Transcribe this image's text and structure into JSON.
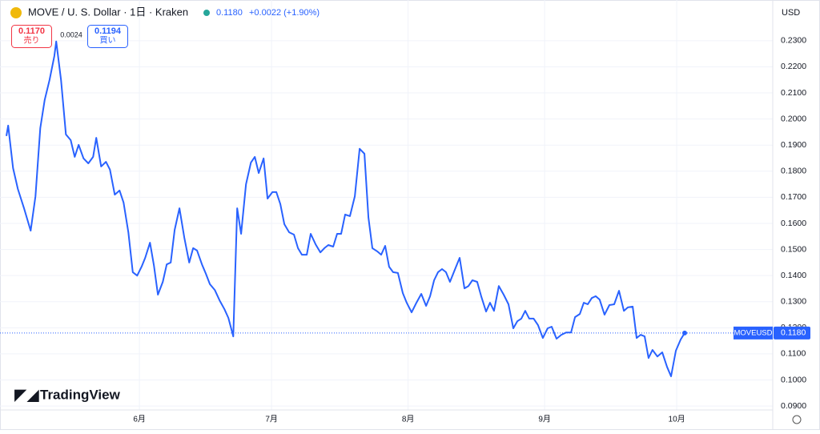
{
  "chart_data": {
    "type": "line",
    "header": {
      "symbol": "MOVE / U. S. Dollar · 1日 · Kraken",
      "last": "0.1180",
      "change": "+0.0022 (+1.90%)",
      "sell_price": "0.1170",
      "sell_label": "売り",
      "spread": "0.0024",
      "buy_price": "0.1194",
      "buy_label": "買い"
    },
    "currency": "USD",
    "price_tag": {
      "name": "MOVEUSD",
      "value": "0.1180"
    },
    "brand": "TradingView",
    "xlim": [
      -30.2,
      143.8
    ],
    "xticks": [
      {
        "value": 0,
        "label": "6月"
      },
      {
        "value": 30,
        "label": "7月"
      },
      {
        "value": 61,
        "label": "8月"
      },
      {
        "value": 92,
        "label": "9月"
      },
      {
        "value": 122,
        "label": "10月"
      }
    ],
    "ylim": [
      0.0885,
      0.2364
    ],
    "yticks": [
      {
        "value": 0.09,
        "label": "0.0900"
      },
      {
        "value": 0.1,
        "label": "0.1000"
      },
      {
        "value": 0.11,
        "label": "0.1100"
      },
      {
        "value": 0.12,
        "label": "0.1200"
      },
      {
        "value": 0.13,
        "label": "0.1300"
      },
      {
        "value": 0.14,
        "label": "0.1400"
      },
      {
        "value": 0.15,
        "label": "0.1500"
      },
      {
        "value": 0.16,
        "label": "0.1600"
      },
      {
        "value": 0.17,
        "label": "0.1700"
      },
      {
        "value": 0.18,
        "label": "0.1800"
      },
      {
        "value": 0.19,
        "label": "0.1900"
      },
      {
        "value": 0.2,
        "label": "0.2000"
      },
      {
        "value": 0.21,
        "label": "0.2100"
      },
      {
        "value": 0.22,
        "label": "0.2200"
      },
      {
        "value": 0.23,
        "label": "0.2300"
      }
    ],
    "grid": true,
    "series": [
      {
        "name": "MOVEUSD",
        "color": "#2962ff",
        "x": [
          -30.2,
          -29.8,
          -28.7,
          -27.6,
          -26.2,
          -24.7,
          -23.6,
          -22.5,
          -21.5,
          -20.4,
          -19.3,
          -18.9,
          -17.8,
          -16.7,
          -15.6,
          -14.7,
          -13.8,
          -12.7,
          -11.6,
          -10.5,
          -9.8,
          -8.7,
          -7.6,
          -6.7,
          -5.6,
          -4.5,
          -3.6,
          -2.5,
          -1.5,
          -0.5,
          0.5,
          1.3,
          2.4,
          3.3,
          4.2,
          5.3,
          6.2,
          7.1,
          8.0,
          9.1,
          10.2,
          11.3,
          12.2,
          13.1,
          14.2,
          15.1,
          16.0,
          17.1,
          18.2,
          19.3,
          20.2,
          21.3,
          22.2,
          23.1,
          24.2,
          25.3,
          26.2,
          27.1,
          28.2,
          29.1,
          30.2,
          31.1,
          32.0,
          32.9,
          34.0,
          35.1,
          36.0,
          36.9,
          38.0,
          38.9,
          40.0,
          41.1,
          42.0,
          42.9,
          44.0,
          44.9,
          45.8,
          46.7,
          47.8,
          48.9,
          50.0,
          51.1,
          52.0,
          52.9,
          54.0,
          54.9,
          55.8,
          56.7,
          57.6,
          58.7,
          59.8,
          60.7,
          61.8,
          62.9,
          64.0,
          65.1,
          66.0,
          66.9,
          67.8,
          68.7,
          69.6,
          70.5,
          71.6,
          72.7,
          73.8,
          74.7,
          75.6,
          76.7,
          77.6,
          78.7,
          79.6,
          80.5,
          81.6,
          82.7,
          83.8,
          84.9,
          85.8,
          86.7,
          87.6,
          88.5,
          89.5,
          90.5,
          91.6,
          92.7,
          93.6,
          94.7,
          95.8,
          96.9,
          98.0,
          98.9,
          100.0,
          100.9,
          101.8,
          102.7,
          103.6,
          104.5,
          105.6,
          106.7,
          107.8,
          108.9,
          110.0,
          110.9,
          112.0,
          112.9,
          113.8,
          114.7,
          115.6,
          116.5,
          117.6,
          118.7,
          119.8,
          120.7,
          121.8,
          122.9,
          123.8
        ],
        "values": [
          0.1935,
          0.1975,
          0.1812,
          0.1732,
          0.1658,
          0.1572,
          0.1704,
          0.1965,
          0.2073,
          0.215,
          0.2242,
          0.2297,
          0.215,
          0.1941,
          0.1919,
          0.1855,
          0.1901,
          0.1849,
          0.183,
          0.1855,
          0.1928,
          0.1818,
          0.1836,
          0.1806,
          0.171,
          0.1726,
          0.168,
          0.1566,
          0.1413,
          0.14,
          0.1434,
          0.1468,
          0.1526,
          0.1437,
          0.1327,
          0.1376,
          0.1443,
          0.145,
          0.1575,
          0.1658,
          0.1545,
          0.145,
          0.1505,
          0.1496,
          0.1443,
          0.1407,
          0.1367,
          0.1345,
          0.1305,
          0.1271,
          0.1238,
          0.1167,
          0.1658,
          0.156,
          0.175,
          0.1833,
          0.1855,
          0.1793,
          0.1849,
          0.1695,
          0.172,
          0.172,
          0.1674,
          0.1597,
          0.1566,
          0.1557,
          0.1505,
          0.148,
          0.148,
          0.156,
          0.152,
          0.1489,
          0.1505,
          0.1517,
          0.1511,
          0.156,
          0.156,
          0.1634,
          0.1628,
          0.1704,
          0.1886,
          0.1867,
          0.1622,
          0.1505,
          0.1493,
          0.148,
          0.1514,
          0.1434,
          0.1413,
          0.141,
          0.1333,
          0.1296,
          0.1259,
          0.1296,
          0.133,
          0.1284,
          0.1321,
          0.1382,
          0.1413,
          0.1425,
          0.1413,
          0.1376,
          0.1422,
          0.1468,
          0.1351,
          0.136,
          0.1382,
          0.1376,
          0.1321,
          0.1262,
          0.1296,
          0.1265,
          0.136,
          0.1327,
          0.129,
          0.1198,
          0.1225,
          0.1235,
          0.1265,
          0.1235,
          0.1235,
          0.121,
          0.1161,
          0.1198,
          0.1204,
          0.1158,
          0.1173,
          0.1182,
          0.1182,
          0.1241,
          0.1253,
          0.1296,
          0.129,
          0.1314,
          0.1321,
          0.1308,
          0.125,
          0.1287,
          0.129,
          0.1342,
          0.1265,
          0.1278,
          0.1281,
          0.1161,
          0.1173,
          0.1167,
          0.1084,
          0.1115,
          0.109,
          0.1106,
          0.105,
          0.1014,
          0.1112,
          0.1155,
          0.118
        ]
      }
    ]
  }
}
